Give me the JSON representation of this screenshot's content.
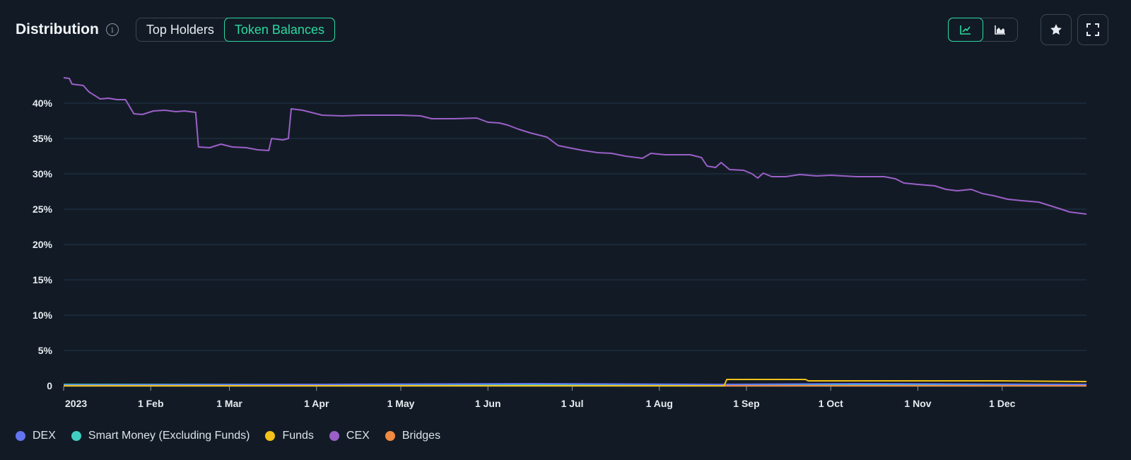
{
  "header": {
    "title": "Distribution",
    "tabs": [
      {
        "label": "Top Holders",
        "active": false
      },
      {
        "label": "Token Balances",
        "active": true
      }
    ]
  },
  "toolbar": {
    "chart_modes": [
      {
        "icon": "line-chart-icon",
        "active": true
      },
      {
        "icon": "area-chart-icon",
        "active": false
      }
    ],
    "favorite_icon": "star-icon",
    "fullscreen_icon": "fullscreen-icon"
  },
  "colors": {
    "accent": "#2bd9a0",
    "grid": "#22364a",
    "DEX": "#6274f0",
    "Smart Money (Excluding Funds)": "#3fcfc0",
    "Funds": "#f2c21b",
    "CEX": "#9b5fc8",
    "Bridges": "#f08a40"
  },
  "chart_data": {
    "type": "line",
    "title": "Distribution",
    "xlabel": "",
    "ylabel": "",
    "x_range": [
      "2023-01-01",
      "2023-12-31"
    ],
    "ylim": [
      0,
      45
    ],
    "y_ticks": [
      0,
      5,
      10,
      15,
      20,
      25,
      30,
      35,
      40
    ],
    "y_tick_labels": [
      "0",
      "5%",
      "10%",
      "15%",
      "20%",
      "25%",
      "30%",
      "35%",
      "40%"
    ],
    "x_ticks": [
      {
        "date": "2023-01-01",
        "label": "2023"
      },
      {
        "date": "2023-02-01",
        "label": "1 Feb"
      },
      {
        "date": "2023-03-01",
        "label": "1 Mar"
      },
      {
        "date": "2023-04-01",
        "label": "1 Apr"
      },
      {
        "date": "2023-05-01",
        "label": "1 May"
      },
      {
        "date": "2023-06-01",
        "label": "1 Jun"
      },
      {
        "date": "2023-07-01",
        "label": "1 Jul"
      },
      {
        "date": "2023-08-01",
        "label": "1 Aug"
      },
      {
        "date": "2023-09-01",
        "label": "1 Sep"
      },
      {
        "date": "2023-10-01",
        "label": "1 Oct"
      },
      {
        "date": "2023-11-01",
        "label": "1 Nov"
      },
      {
        "date": "2023-12-01",
        "label": "1 Dec"
      }
    ],
    "grid": true,
    "legend_position": "bottom-left",
    "series": [
      {
        "name": "DEX",
        "points": [
          [
            "2023-01-01",
            0.1
          ],
          [
            "2023-04-01",
            0.2
          ],
          [
            "2023-06-15",
            0.3
          ],
          [
            "2023-08-24",
            0.2
          ],
          [
            "2023-10-10",
            0.3
          ],
          [
            "2023-12-31",
            0.2
          ]
        ]
      },
      {
        "name": "Smart Money (Excluding Funds)",
        "points": [
          [
            "2023-01-01",
            0.2
          ],
          [
            "2023-03-15",
            0.2
          ],
          [
            "2023-06-01",
            0.2
          ],
          [
            "2023-09-01",
            0.2
          ],
          [
            "2023-12-31",
            0.2
          ]
        ]
      },
      {
        "name": "Funds",
        "points": [
          [
            "2023-01-01",
            0.0
          ],
          [
            "2023-08-24",
            0.0
          ],
          [
            "2023-08-25",
            0.9
          ],
          [
            "2023-09-22",
            0.9
          ],
          [
            "2023-09-23",
            0.7
          ],
          [
            "2023-11-30",
            0.7
          ],
          [
            "2023-12-31",
            0.6
          ]
        ]
      },
      {
        "name": "CEX",
        "points": [
          [
            "2023-01-01",
            43.6
          ],
          [
            "2023-01-03",
            43.5
          ],
          [
            "2023-01-04",
            42.7
          ],
          [
            "2023-01-08",
            42.5
          ],
          [
            "2023-01-10",
            41.6
          ],
          [
            "2023-01-14",
            40.6
          ],
          [
            "2023-01-17",
            40.7
          ],
          [
            "2023-01-20",
            40.5
          ],
          [
            "2023-01-23",
            40.5
          ],
          [
            "2023-01-26",
            38.5
          ],
          [
            "2023-01-29",
            38.4
          ],
          [
            "2023-02-02",
            38.9
          ],
          [
            "2023-02-06",
            39.0
          ],
          [
            "2023-02-10",
            38.8
          ],
          [
            "2023-02-13",
            38.9
          ],
          [
            "2023-02-17",
            38.7
          ],
          [
            "2023-02-18",
            33.8
          ],
          [
            "2023-02-22",
            33.7
          ],
          [
            "2023-02-26",
            34.2
          ],
          [
            "2023-03-02",
            33.8
          ],
          [
            "2023-03-07",
            33.7
          ],
          [
            "2023-03-11",
            33.4
          ],
          [
            "2023-03-15",
            33.3
          ],
          [
            "2023-03-16",
            35.0
          ],
          [
            "2023-03-20",
            34.8
          ],
          [
            "2023-03-22",
            35.0
          ],
          [
            "2023-03-23",
            39.2
          ],
          [
            "2023-03-27",
            39.0
          ],
          [
            "2023-04-03",
            38.3
          ],
          [
            "2023-04-10",
            38.2
          ],
          [
            "2023-04-17",
            38.3
          ],
          [
            "2023-04-24",
            38.3
          ],
          [
            "2023-05-01",
            38.3
          ],
          [
            "2023-05-08",
            38.2
          ],
          [
            "2023-05-12",
            37.8
          ],
          [
            "2023-05-20",
            37.8
          ],
          [
            "2023-05-28",
            37.9
          ],
          [
            "2023-06-01",
            37.3
          ],
          [
            "2023-06-05",
            37.2
          ],
          [
            "2023-06-08",
            36.9
          ],
          [
            "2023-06-12",
            36.3
          ],
          [
            "2023-06-16",
            35.8
          ],
          [
            "2023-06-22",
            35.2
          ],
          [
            "2023-06-26",
            34.0
          ],
          [
            "2023-07-01",
            33.6
          ],
          [
            "2023-07-05",
            33.3
          ],
          [
            "2023-07-10",
            33.0
          ],
          [
            "2023-07-15",
            32.9
          ],
          [
            "2023-07-20",
            32.5
          ],
          [
            "2023-07-26",
            32.2
          ],
          [
            "2023-07-29",
            32.9
          ],
          [
            "2023-08-03",
            32.7
          ],
          [
            "2023-08-12",
            32.7
          ],
          [
            "2023-08-16",
            32.3
          ],
          [
            "2023-08-18",
            31.1
          ],
          [
            "2023-08-21",
            30.9
          ],
          [
            "2023-08-23",
            31.6
          ],
          [
            "2023-08-26",
            30.6
          ],
          [
            "2023-08-31",
            30.5
          ],
          [
            "2023-09-03",
            30.0
          ],
          [
            "2023-09-05",
            29.4
          ],
          [
            "2023-09-07",
            30.1
          ],
          [
            "2023-09-10",
            29.6
          ],
          [
            "2023-09-15",
            29.6
          ],
          [
            "2023-09-20",
            29.9
          ],
          [
            "2023-09-26",
            29.7
          ],
          [
            "2023-10-01",
            29.8
          ],
          [
            "2023-10-10",
            29.6
          ],
          [
            "2023-10-20",
            29.6
          ],
          [
            "2023-10-24",
            29.3
          ],
          [
            "2023-10-27",
            28.7
          ],
          [
            "2023-11-01",
            28.5
          ],
          [
            "2023-11-07",
            28.3
          ],
          [
            "2023-11-11",
            27.8
          ],
          [
            "2023-11-15",
            27.6
          ],
          [
            "2023-11-20",
            27.8
          ],
          [
            "2023-11-24",
            27.2
          ],
          [
            "2023-11-28",
            26.9
          ],
          [
            "2023-12-03",
            26.4
          ],
          [
            "2023-12-08",
            26.2
          ],
          [
            "2023-12-14",
            26.0
          ],
          [
            "2023-12-18",
            25.5
          ],
          [
            "2023-12-22",
            25.0
          ],
          [
            "2023-12-25",
            24.6
          ],
          [
            "2023-12-29",
            24.4
          ],
          [
            "2023-12-31",
            24.3
          ]
        ]
      },
      {
        "name": "Bridges",
        "points": [
          [
            "2023-01-01",
            0.0
          ],
          [
            "2023-06-01",
            0.0
          ],
          [
            "2023-12-31",
            0.0
          ]
        ]
      }
    ]
  }
}
